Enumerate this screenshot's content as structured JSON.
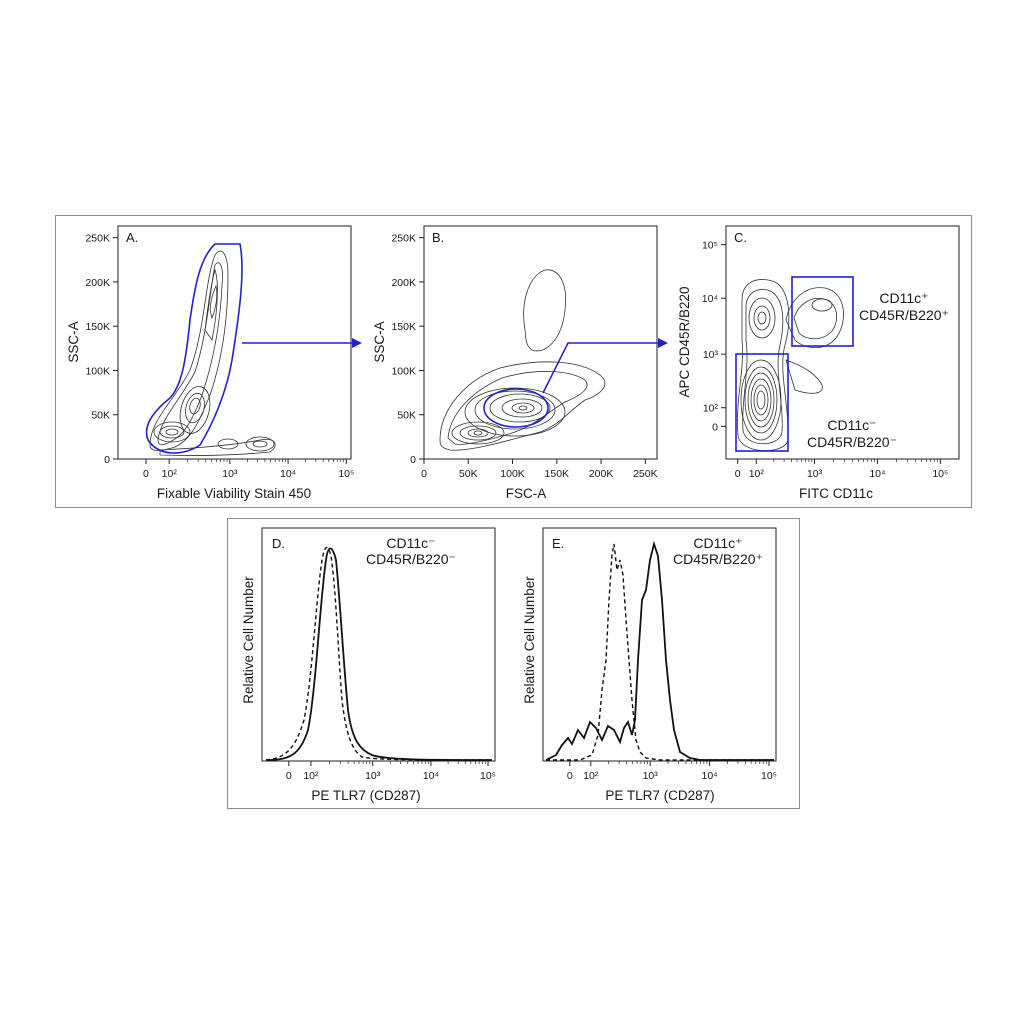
{
  "chart_data": [
    {
      "type": "scatter",
      "panel_label": "A.",
      "xlabel": "Fixable Viability Stain 450",
      "ylabel": "SSC-A",
      "x_ticks": [
        "0",
        "10²",
        "10³",
        "10⁴",
        "10⁵"
      ],
      "y_ticks": [
        "0",
        "50K",
        "100K",
        "150K",
        "200K",
        "250K"
      ],
      "ylim": [
        0,
        262144
      ],
      "gate_color": "#2222cc",
      "arrow_to": "B."
    },
    {
      "type": "scatter",
      "panel_label": "B.",
      "xlabel": "FSC-A",
      "ylabel": "SSC-A",
      "x_ticks": [
        "0",
        "50K",
        "100K",
        "150K",
        "200K",
        "250K"
      ],
      "y_ticks": [
        "0",
        "50K",
        "100K",
        "150K",
        "200K",
        "250K"
      ],
      "xlim": [
        0,
        262144
      ],
      "ylim": [
        0,
        262144
      ],
      "gate_color": "#2222cc",
      "arrow_to": "C."
    },
    {
      "type": "scatter",
      "panel_label": "C.",
      "xlabel": "FITC CD11c",
      "ylabel": "APC CD45R/B220",
      "x_ticks": [
        "0",
        "10²",
        "10³",
        "10⁴",
        "10⁵"
      ],
      "y_ticks": [
        "0",
        "10²",
        "10³",
        "10⁴",
        "10⁵"
      ],
      "gates": [
        {
          "line1": "CD11c⁺",
          "line2": "CD45R/B220⁺"
        },
        {
          "line1": "CD11c⁻",
          "line2": "CD45R/B220⁻"
        }
      ],
      "gate_color": "#2222cc"
    },
    {
      "type": "line",
      "panel_label": "D.",
      "title_line1": "CD11c⁻",
      "title_line2": "CD45R/B220⁻",
      "xlabel": "PE  TLR7 (CD287)",
      "ylabel": "Relative Cell Number",
      "x_ticks": [
        "0",
        "10²",
        "10³",
        "10⁴",
        "10⁵"
      ],
      "series": [
        {
          "style": "solid",
          "peak_x": 230
        },
        {
          "style": "dashed",
          "peak_x": 180
        }
      ]
    },
    {
      "type": "line",
      "panel_label": "E.",
      "title_line1": "CD11c⁺",
      "title_line2": "CD45R/B220⁺",
      "xlabel": "PE  TLR7 (CD287)",
      "ylabel": "Relative Cell Number",
      "x_ticks": [
        "0",
        "10²",
        "10³",
        "10⁴",
        "10⁵"
      ],
      "series": [
        {
          "style": "solid",
          "peak_x": 1200
        },
        {
          "style": "dashed",
          "peak_x": 200
        }
      ]
    }
  ]
}
